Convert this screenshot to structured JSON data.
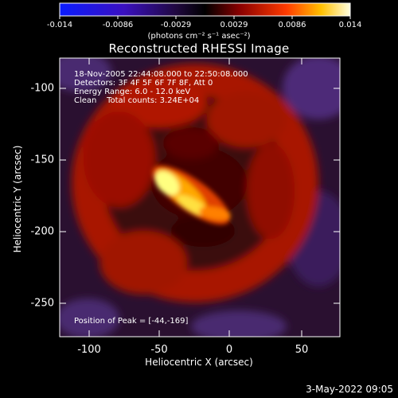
{
  "title": "Reconstructed RHESSI Image",
  "colorbar": {
    "ticks": [
      "-0.014",
      "-0.0086",
      "-0.0029",
      "0.0029",
      "0.0086",
      "0.014"
    ],
    "unit": "(photons cm⁻² s⁻¹ asec⁻²)"
  },
  "annotations": {
    "line1": "18-Nov-2005 22:44:08.000 to 22:50:08.000",
    "line2": "Detectors: 3F 4F 5F 6F 7F 8F, Att 0",
    "line3": "Energy Range: 6.0 - 12.0 keV",
    "line4": "Clean    Total counts: 3.24E+04",
    "peak": "Position of Peak = [-44,-169]"
  },
  "footer_date": "3-May-2022 09:05",
  "chart_data": {
    "type": "heatmap",
    "title": "Reconstructed RHESSI Image",
    "xlabel": "Heliocentric X (arcsec)",
    "ylabel": "Heliocentric Y (arcsec)",
    "xlim": [
      -117,
      74
    ],
    "ylim": [
      -273,
      -82
    ],
    "xticks": [
      "-100",
      "-50",
      "0",
      "50"
    ],
    "yticks": [
      "-100",
      "-150",
      "-200",
      "-250"
    ],
    "color_range": [
      -0.014,
      0.014
    ],
    "colormap": "blue-black-red-yellow-white",
    "peak": [
      -44,
      -169
    ]
  }
}
